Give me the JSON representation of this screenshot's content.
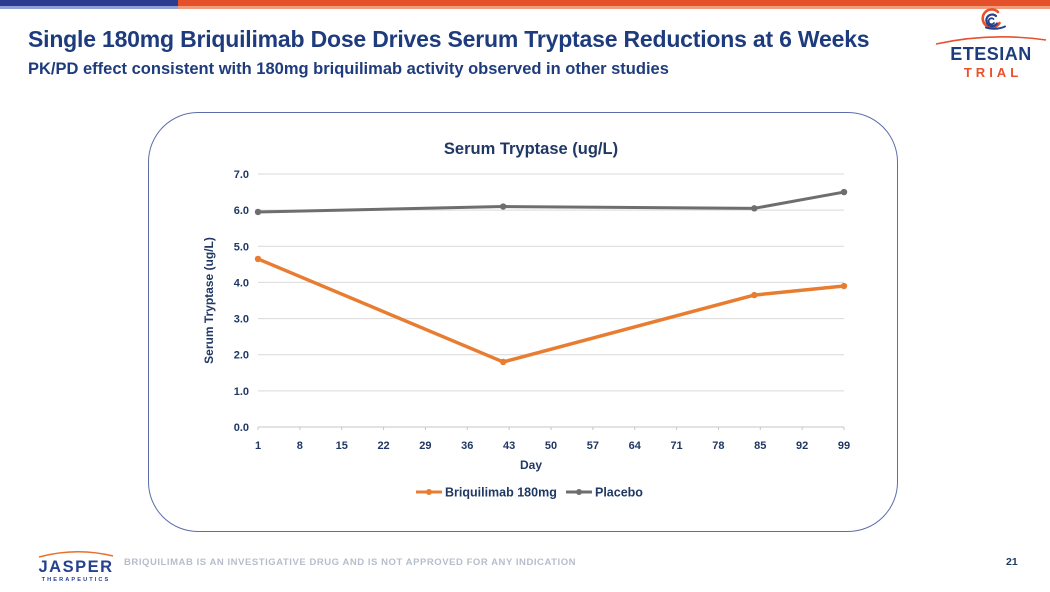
{
  "slide": {
    "title": "Single 180mg Briquilimab Dose Drives Serum Tryptase Reductions at 6 Weeks",
    "subtitle": "PK/PD effect consistent with 180mg briquilimab activity observed in other studies",
    "page_number": "21",
    "disclaimer": "BRIQUILIMAB IS AN INVESTIGATIVE DRUG AND IS NOT APPROVED FOR ANY INDICATION"
  },
  "logos": {
    "etesian": {
      "name": "ETESIAN",
      "sub": "TRIAL"
    },
    "jasper": {
      "name": "JASPER",
      "sub": "THERAPEUTICS"
    }
  },
  "colors": {
    "accent_navy": "#2b3b8e",
    "accent_orange": "#e8512b",
    "chart_text_navy": "#1f3864",
    "briquilimab_orange": "#e87d31",
    "placebo_gray": "#6e6e6e",
    "gridline": "#d9d9d9",
    "card_border": "#5c6ea9"
  },
  "chart_data": {
    "type": "line",
    "title": "Serum Tryptase (ug/L)",
    "xlabel": "Day",
    "ylabel": "Serum Tryptase (ug/L)",
    "x_ticks": [
      1,
      8,
      15,
      22,
      29,
      36,
      43,
      50,
      57,
      64,
      71,
      78,
      85,
      92,
      99
    ],
    "xlim": [
      1,
      99
    ],
    "ylim": [
      0,
      7
    ],
    "y_ticks": [
      0,
      1,
      2,
      3,
      4,
      5,
      6,
      7
    ],
    "y_tick_labels": [
      "0.0",
      "1.0",
      "2.0",
      "3.0",
      "4.0",
      "5.0",
      "6.0",
      "7.0"
    ],
    "grid": true,
    "legend_position": "bottom",
    "x": [
      1,
      42,
      84,
      99
    ],
    "series": [
      {
        "name": "Briquilimab 180mg",
        "color": "#e87d31",
        "values": [
          4.65,
          1.8,
          3.65,
          3.9
        ]
      },
      {
        "name": "Placebo",
        "color": "#6e6e6e",
        "values": [
          5.95,
          6.1,
          6.05,
          6.5
        ]
      }
    ]
  }
}
